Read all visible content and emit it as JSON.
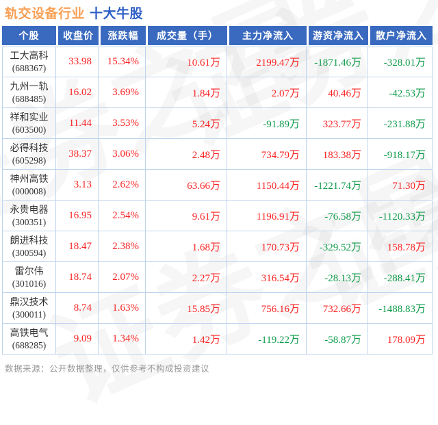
{
  "title": {
    "industry": "轨交设备行业",
    "suffix": "十大牛股"
  },
  "watermark": {
    "text": "证券之星"
  },
  "footer": {
    "source_note": "数据来源：公开数据整理，仅供参考不构成投资建议"
  },
  "colors": {
    "positive_red": "#fb2323",
    "negative_green": "#0e9b4a",
    "header_bg": "#3a6abf",
    "header_text": "#ffffff",
    "grid_border": "#bdd4ec",
    "title_industry_orange": "#f9a055",
    "title_suffix_blue": "#2f5fc6",
    "stock_name_text": "#333333",
    "footer_text": "#999999"
  },
  "chart_data": {
    "type": "table",
    "title": "轨交设备行业 十大牛股",
    "columns": [
      "个股",
      "收盘价",
      "涨跌幅",
      "成交量（手）",
      "主力净流入",
      "游资净流入",
      "散户净流入"
    ],
    "rows": [
      {
        "name": "工大高科",
        "code": "(688367)",
        "close": "33.98",
        "change_pct": "15.34%",
        "volume": "10.61万",
        "main_inflow": "2199.47万",
        "speculative_inflow": "-1871.46万",
        "retail_inflow": "-328.01万"
      },
      {
        "name": "九州一轨",
        "code": "(688485)",
        "close": "16.02",
        "change_pct": "3.69%",
        "volume": "1.84万",
        "main_inflow": "2.07万",
        "speculative_inflow": "40.46万",
        "retail_inflow": "-42.53万"
      },
      {
        "name": "祥和实业",
        "code": "(603500)",
        "close": "11.44",
        "change_pct": "3.53%",
        "volume": "5.24万",
        "main_inflow": "-91.89万",
        "speculative_inflow": "323.77万",
        "retail_inflow": "-231.88万"
      },
      {
        "name": "必得科技",
        "code": "(605298)",
        "close": "38.37",
        "change_pct": "3.06%",
        "volume": "2.48万",
        "main_inflow": "734.79万",
        "speculative_inflow": "183.38万",
        "retail_inflow": "-918.17万"
      },
      {
        "name": "神州高铁",
        "code": "(000008)",
        "close": "3.13",
        "change_pct": "2.62%",
        "volume": "63.66万",
        "main_inflow": "1150.44万",
        "speculative_inflow": "-1221.74万",
        "retail_inflow": "71.30万"
      },
      {
        "name": "永贵电器",
        "code": "(300351)",
        "close": "16.95",
        "change_pct": "2.54%",
        "volume": "9.61万",
        "main_inflow": "1196.91万",
        "speculative_inflow": "-76.58万",
        "retail_inflow": "-1120.33万"
      },
      {
        "name": "朗进科技",
        "code": "(300594)",
        "close": "18.47",
        "change_pct": "2.38%",
        "volume": "1.68万",
        "main_inflow": "170.73万",
        "speculative_inflow": "-329.52万",
        "retail_inflow": "158.78万"
      },
      {
        "name": "雷尔伟",
        "code": "(301016)",
        "close": "18.74",
        "change_pct": "2.07%",
        "volume": "2.27万",
        "main_inflow": "316.54万",
        "speculative_inflow": "-28.13万",
        "retail_inflow": "-288.41万"
      },
      {
        "name": "鼎汉技术",
        "code": "(300011)",
        "close": "8.74",
        "change_pct": "1.63%",
        "volume": "15.85万",
        "main_inflow": "756.16万",
        "speculative_inflow": "732.66万",
        "retail_inflow": "-1488.83万"
      },
      {
        "name": "高铁电气",
        "code": "(688285)",
        "close": "9.09",
        "change_pct": "1.34%",
        "volume": "1.42万",
        "main_inflow": "-119.22万",
        "speculative_inflow": "-58.87万",
        "retail_inflow": "178.09万"
      }
    ]
  }
}
